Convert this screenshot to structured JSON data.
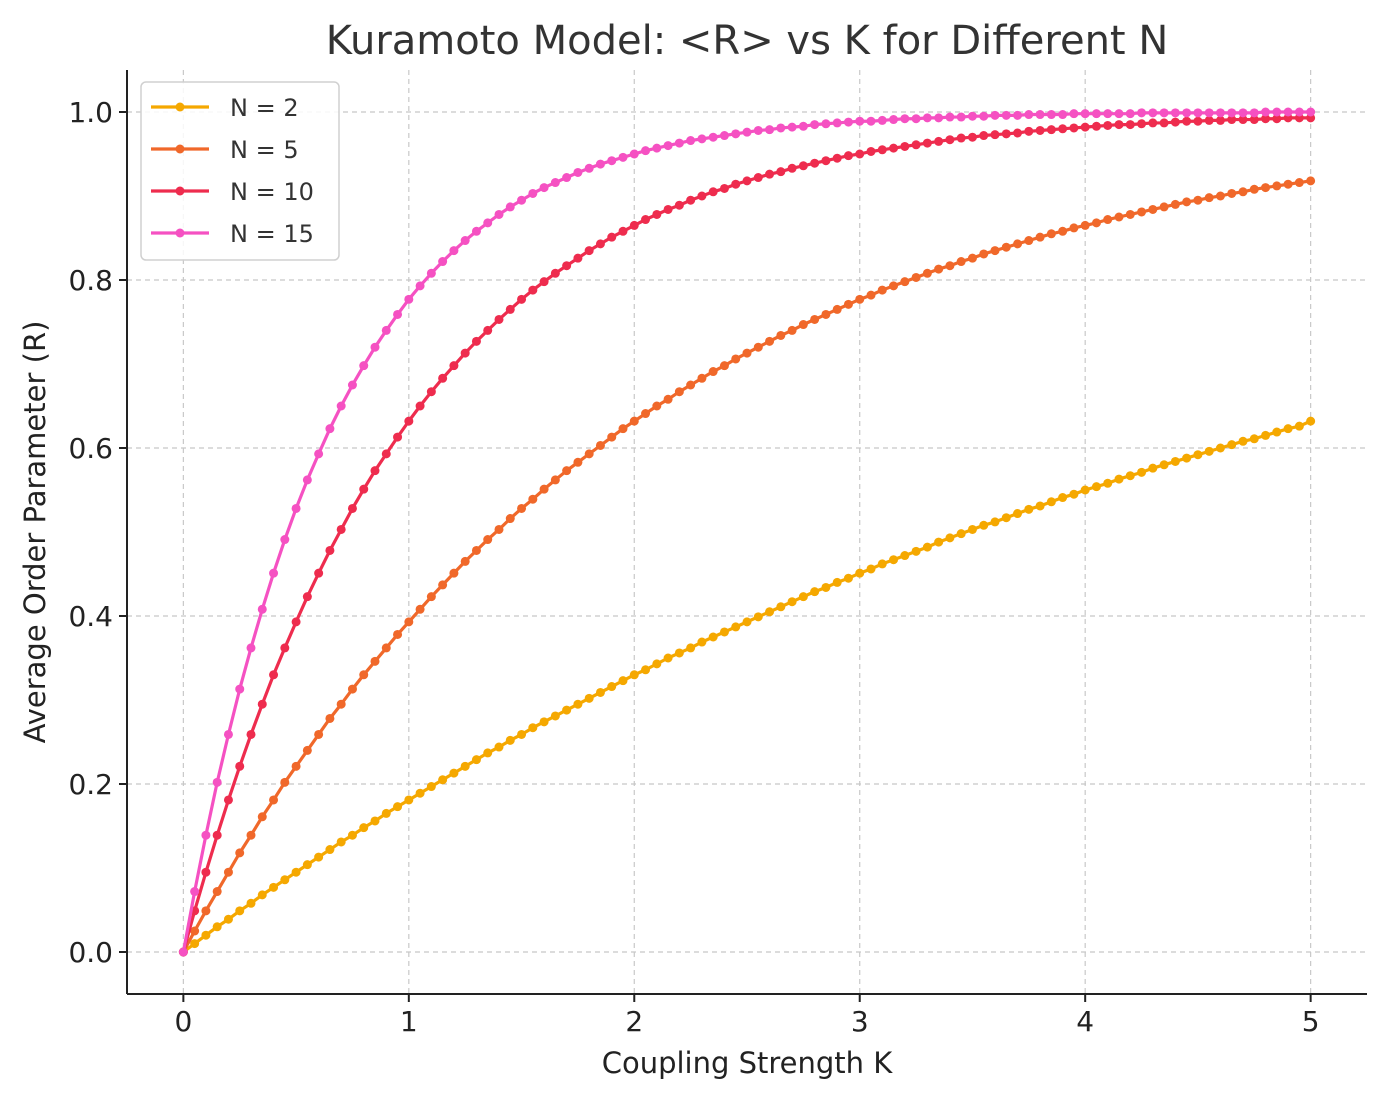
{
  "chart_data": {
    "type": "line",
    "title": "Kuramoto Model: <R> vs K for Different N",
    "xlabel": "Coupling Strength K",
    "ylabel": "Average Order Parameter (R)",
    "xlim": [
      -0.25,
      5.25
    ],
    "ylim": [
      -0.05,
      1.05
    ],
    "xticks": [
      0,
      1,
      2,
      3,
      4,
      5
    ],
    "xtick_labels": [
      "0",
      "1",
      "2",
      "3",
      "4",
      "5"
    ],
    "yticks": [
      0.0,
      0.2,
      0.4,
      0.6,
      0.8,
      1.0
    ],
    "ytick_labels": [
      "0.0",
      "0.2",
      "0.4",
      "0.6",
      "0.8",
      "1.0"
    ],
    "grid": true,
    "legend_position": "top-left",
    "x": [
      0.0,
      0.05,
      0.1,
      0.15,
      0.2,
      0.25,
      0.3,
      0.35,
      0.4,
      0.45,
      0.5,
      0.55,
      0.6,
      0.65,
      0.7,
      0.75,
      0.8,
      0.85,
      0.9,
      0.95,
      1.0,
      1.05,
      1.1,
      1.15,
      1.2,
      1.25,
      1.3,
      1.35,
      1.4,
      1.45,
      1.5,
      1.55,
      1.6,
      1.65,
      1.7,
      1.75,
      1.8,
      1.85,
      1.9,
      1.95,
      2.0,
      2.05,
      2.1,
      2.15,
      2.2,
      2.25,
      2.3,
      2.35,
      2.4,
      2.45,
      2.5,
      2.55,
      2.6,
      2.65,
      2.7,
      2.75,
      2.8,
      2.85,
      2.9,
      2.95,
      3.0,
      3.05,
      3.1,
      3.15,
      3.2,
      3.25,
      3.3,
      3.35,
      3.4,
      3.45,
      3.5,
      3.55,
      3.6,
      3.65,
      3.7,
      3.75,
      3.8,
      3.85,
      3.9,
      3.95,
      4.0,
      4.05,
      4.1,
      4.15,
      4.2,
      4.25,
      4.3,
      4.35,
      4.4,
      4.45,
      4.5,
      4.55,
      4.6,
      4.65,
      4.7,
      4.75,
      4.8,
      4.85,
      4.9,
      4.95,
      5.0
    ],
    "series": [
      {
        "name": "N = 2",
        "color": "#f5a800",
        "values": [
          0.0,
          0.01,
          0.02,
          0.03,
          0.039,
          0.049,
          0.058,
          0.068,
          0.077,
          0.086,
          0.095,
          0.104,
          0.113,
          0.122,
          0.131,
          0.139,
          0.148,
          0.156,
          0.165,
          0.173,
          0.181,
          0.189,
          0.197,
          0.205,
          0.213,
          0.221,
          0.229,
          0.237,
          0.244,
          0.252,
          0.259,
          0.267,
          0.274,
          0.281,
          0.288,
          0.295,
          0.302,
          0.309,
          0.316,
          0.323,
          0.33,
          0.336,
          0.343,
          0.35,
          0.356,
          0.362,
          0.369,
          0.375,
          0.381,
          0.387,
          0.393,
          0.399,
          0.405,
          0.411,
          0.417,
          0.423,
          0.429,
          0.434,
          0.44,
          0.445,
          0.451,
          0.456,
          0.462,
          0.467,
          0.472,
          0.477,
          0.482,
          0.488,
          0.493,
          0.498,
          0.503,
          0.508,
          0.512,
          0.517,
          0.522,
          0.527,
          0.531,
          0.536,
          0.541,
          0.545,
          0.55,
          0.554,
          0.558,
          0.563,
          0.567,
          0.571,
          0.576,
          0.58,
          0.584,
          0.588,
          0.592,
          0.596,
          0.6,
          0.604,
          0.608,
          0.611,
          0.615,
          0.619,
          0.623,
          0.626,
          0.632
        ]
      },
      {
        "name": "N = 5",
        "color": "#f0682a",
        "values": [
          0.0,
          0.025,
          0.049,
          0.072,
          0.095,
          0.118,
          0.139,
          0.161,
          0.181,
          0.202,
          0.221,
          0.24,
          0.259,
          0.278,
          0.295,
          0.313,
          0.33,
          0.346,
          0.362,
          0.378,
          0.393,
          0.408,
          0.423,
          0.437,
          0.451,
          0.465,
          0.478,
          0.491,
          0.503,
          0.516,
          0.528,
          0.539,
          0.551,
          0.562,
          0.573,
          0.583,
          0.593,
          0.603,
          0.613,
          0.623,
          0.632,
          0.641,
          0.65,
          0.658,
          0.667,
          0.675,
          0.683,
          0.691,
          0.698,
          0.706,
          0.713,
          0.72,
          0.727,
          0.734,
          0.74,
          0.747,
          0.753,
          0.759,
          0.765,
          0.771,
          0.777,
          0.782,
          0.788,
          0.793,
          0.798,
          0.803,
          0.808,
          0.813,
          0.817,
          0.822,
          0.826,
          0.831,
          0.835,
          0.839,
          0.843,
          0.847,
          0.851,
          0.855,
          0.858,
          0.862,
          0.865,
          0.868,
          0.872,
          0.875,
          0.878,
          0.881,
          0.884,
          0.887,
          0.89,
          0.893,
          0.895,
          0.898,
          0.9,
          0.903,
          0.905,
          0.908,
          0.91,
          0.912,
          0.914,
          0.916,
          0.918
        ]
      },
      {
        "name": "N = 10",
        "color": "#ee2c4e",
        "values": [
          0.0,
          0.049,
          0.095,
          0.139,
          0.181,
          0.221,
          0.259,
          0.295,
          0.33,
          0.362,
          0.393,
          0.423,
          0.451,
          0.478,
          0.503,
          0.528,
          0.551,
          0.573,
          0.593,
          0.613,
          0.632,
          0.65,
          0.667,
          0.683,
          0.698,
          0.713,
          0.727,
          0.74,
          0.753,
          0.765,
          0.777,
          0.788,
          0.798,
          0.808,
          0.817,
          0.826,
          0.835,
          0.843,
          0.851,
          0.858,
          0.865,
          0.872,
          0.878,
          0.884,
          0.889,
          0.895,
          0.9,
          0.905,
          0.909,
          0.914,
          0.918,
          0.922,
          0.926,
          0.929,
          0.933,
          0.936,
          0.939,
          0.942,
          0.945,
          0.948,
          0.95,
          0.953,
          0.955,
          0.957,
          0.959,
          0.961,
          0.963,
          0.965,
          0.967,
          0.969,
          0.97,
          0.972,
          0.973,
          0.974,
          0.975,
          0.977,
          0.978,
          0.979,
          0.98,
          0.981,
          0.982,
          0.983,
          0.984,
          0.985,
          0.985,
          0.986,
          0.987,
          0.987,
          0.988,
          0.989,
          0.989,
          0.99,
          0.99,
          0.991,
          0.991,
          0.991,
          0.992,
          0.992,
          0.993,
          0.993,
          0.993
        ]
      },
      {
        "name": "N = 15",
        "color": "#f551c2",
        "values": [
          0.0,
          0.072,
          0.139,
          0.202,
          0.259,
          0.313,
          0.362,
          0.408,
          0.451,
          0.491,
          0.528,
          0.562,
          0.593,
          0.623,
          0.65,
          0.675,
          0.698,
          0.72,
          0.74,
          0.759,
          0.777,
          0.793,
          0.808,
          0.822,
          0.835,
          0.847,
          0.858,
          0.868,
          0.878,
          0.887,
          0.895,
          0.903,
          0.91,
          0.916,
          0.922,
          0.928,
          0.933,
          0.938,
          0.942,
          0.946,
          0.95,
          0.954,
          0.957,
          0.96,
          0.963,
          0.966,
          0.968,
          0.97,
          0.972,
          0.974,
          0.976,
          0.978,
          0.979,
          0.981,
          0.982,
          0.983,
          0.985,
          0.986,
          0.987,
          0.988,
          0.989,
          0.989,
          0.99,
          0.991,
          0.992,
          0.992,
          0.993,
          0.993,
          0.994,
          0.994,
          0.995,
          0.995,
          0.996,
          0.996,
          0.996,
          0.997,
          0.997,
          0.997,
          0.997,
          0.998,
          0.998,
          0.998,
          0.998,
          0.998,
          0.998,
          0.999,
          0.999,
          0.999,
          0.999,
          0.999,
          0.999,
          0.999,
          0.999,
          0.999,
          0.999,
          0.999,
          1.0,
          1.0,
          1.0,
          1.0,
          1.0
        ]
      }
    ]
  }
}
